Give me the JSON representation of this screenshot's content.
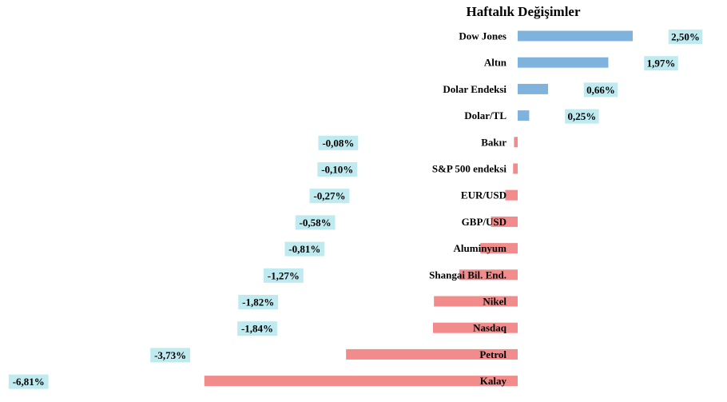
{
  "chart_data": {
    "type": "bar",
    "orientation": "horizontal",
    "title": "Haftalık Değişimler",
    "categories": [
      "Dow Jones",
      "Altın",
      "Dolar Endeksi",
      "Dolar/TL",
      "Bakır",
      "S&P 500 endeksi",
      "EUR/USD",
      "GBP/USD",
      "Aluminyum",
      "Shangai Bil. End.",
      "Nikel",
      "Nasdaq",
      "Petrol",
      "Kalay"
    ],
    "values": [
      2.5,
      1.97,
      0.66,
      0.25,
      -0.08,
      -0.1,
      -0.27,
      -0.58,
      -0.81,
      -1.27,
      -1.82,
      -1.84,
      -3.73,
      -6.81
    ],
    "value_labels": [
      "2,50%",
      "1,97%",
      "0,66%",
      "0,25%",
      "-0,08%",
      "-0,10%",
      "-0,27%",
      "-0,58%",
      "-0,81%",
      "-1,27%",
      "-1,82%",
      "-1,84%",
      "-3,73%",
      "-6,81%"
    ],
    "xlim": [
      -6.81,
      2.5
    ],
    "xlabel": "",
    "ylabel": "",
    "grid": false,
    "legend": "none",
    "colors": {
      "positive": "#7fb3de",
      "negative": "#f28b8b",
      "label_box": "#bfeaf0"
    }
  }
}
